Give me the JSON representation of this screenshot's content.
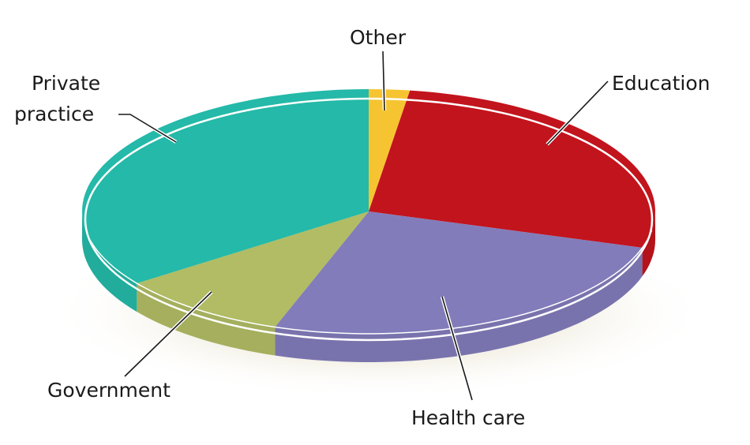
{
  "chart_data": {
    "type": "pie",
    "style": "3d",
    "legend": "none",
    "categories": [
      "Other",
      "Education",
      "Health care",
      "Government",
      "Private practice"
    ],
    "values": [
      2.3,
      27.5,
      25.5,
      9.7,
      35.0
    ],
    "unit": "percent (estimated)",
    "colors": [
      "#f6c431",
      "#c2141d",
      "#827cba",
      "#b1bc64",
      "#24b9a8"
    ],
    "labels": {
      "other": "Other",
      "education": "Education",
      "health_care": "Health care",
      "government": "Government",
      "private_practice_line1": "Private",
      "private_practice_line2": "practice"
    }
  }
}
